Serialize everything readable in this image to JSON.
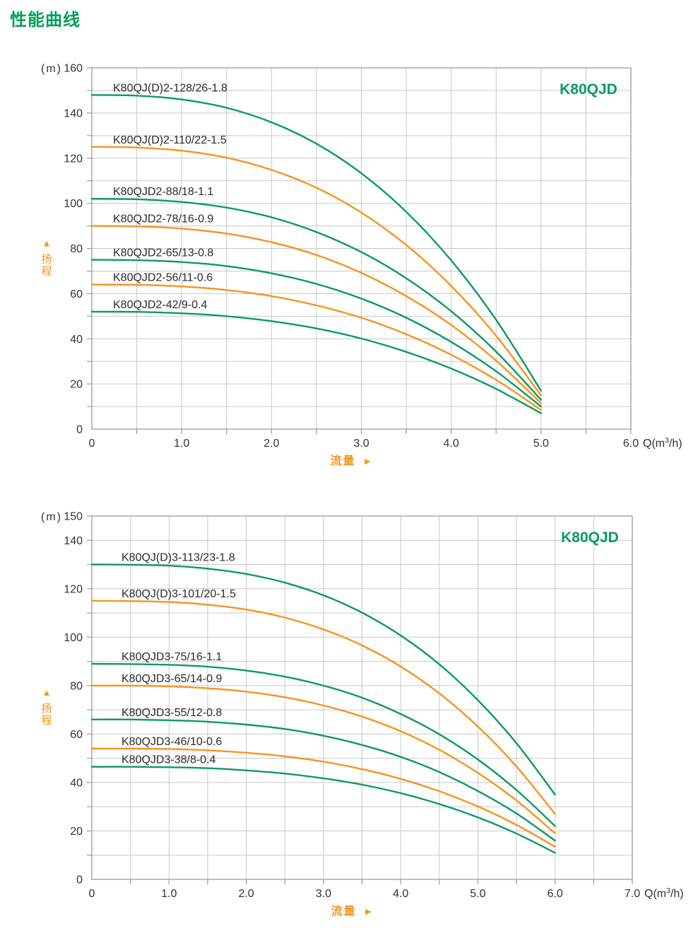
{
  "page": {
    "title": "性能曲线"
  },
  "colors": {
    "heading_green": "#00A05A",
    "curve_green": "#0B9A66",
    "curve_orange": "#F7941D",
    "axis_text": "#333333",
    "label_text": "#2B2B2B",
    "grid": "#C9C9C9",
    "frame": "#9B9B9B"
  },
  "chart_data": [
    {
      "type": "line",
      "title": "K80QJD",
      "y_unit": "(m)",
      "y_axis_label": "扬程",
      "y_axis_arrow": "▲",
      "x_axis_label": "流量",
      "x_axis_arrow": "►",
      "x_unit_prefix": "Q(m",
      "x_unit_sup": "3",
      "x_unit_suffix": "/h)",
      "xlim": [
        0,
        6
      ],
      "ylim": [
        0,
        160
      ],
      "grid": true,
      "grid_x_step": 0.5,
      "grid_y_step": 10,
      "x_tick_step": 1,
      "x_minor_step": 0.5,
      "y_minor_step": 10,
      "x_tick_labels": [
        "0",
        "1.0",
        "2.0",
        "3.0",
        "4.0",
        "5.0",
        "6.0"
      ],
      "y_tick_values": [
        0,
        20,
        40,
        60,
        80,
        100,
        120,
        140,
        160
      ],
      "legend_position": "inline-labels",
      "q": [
        0,
        0.5,
        1,
        1.5,
        2,
        2.5,
        3,
        3.5,
        4,
        4.5,
        5
      ],
      "series": [
        {
          "name": "K80QJ(D)2-128/26-1.8",
          "color": "green",
          "h": [
            148,
            147.7,
            146.0,
            142.3,
            135.9,
            126.4,
            113.3,
            96.2,
            74.7,
            48.4,
            17
          ]
        },
        {
          "name": "K80QJ(D)2-110/22-1.5",
          "color": "orange",
          "h": [
            125,
            124.7,
            123.3,
            120.2,
            114.8,
            106.9,
            95.9,
            81.5,
            63.4,
            41.3,
            15
          ]
        },
        {
          "name": "K80QJD2-88/18-1.1",
          "color": "green",
          "h": [
            102,
            101.8,
            100.6,
            98.1,
            93.8,
            87.3,
            78.4,
            66.8,
            52.2,
            34.3,
            13
          ]
        },
        {
          "name": "K80QJD2-78/16-0.9",
          "color": "orange",
          "h": [
            90,
            89.8,
            88.8,
            86.6,
            82.8,
            77.1,
            69.2,
            58.9,
            46.1,
            30.3,
            11.5
          ]
        },
        {
          "name": "K80QJD2-65/13-0.8",
          "color": "green",
          "h": [
            75,
            74.8,
            74.0,
            72.2,
            69.0,
            64.3,
            57.8,
            49.3,
            38.6,
            25.6,
            10
          ]
        },
        {
          "name": "K80QJD2-56/11-0.6",
          "color": "orange",
          "h": [
            64,
            63.9,
            63.2,
            61.6,
            58.9,
            54.8,
            49.3,
            42.0,
            32.9,
            21.8,
            8.5
          ]
        },
        {
          "name": "K80QJD2-42/9-0.4",
          "color": "green",
          "h": [
            52,
            51.9,
            51.3,
            50.0,
            47.8,
            44.6,
            40.1,
            34.2,
            26.8,
            17.8,
            7
          ]
        }
      ]
    },
    {
      "type": "line",
      "title": "K80QJD",
      "y_unit": "(m)",
      "y_axis_label": "扬程",
      "y_axis_arrow": "▲",
      "x_axis_label": "流量",
      "x_axis_arrow": "►",
      "x_unit_prefix": "Q(m",
      "x_unit_sup": "3",
      "x_unit_suffix": "/h)",
      "xlim": [
        0,
        7
      ],
      "ylim": [
        0,
        150
      ],
      "grid": true,
      "grid_x_step": 0.5,
      "grid_y_step": 10,
      "x_tick_step": 1,
      "x_minor_step": 0.5,
      "y_minor_step": 10,
      "x_tick_labels": [
        "0",
        "1.0",
        "2.0",
        "3.0",
        "4.0",
        "5.0",
        "6.0",
        "7.0"
      ],
      "y_tick_values": [
        0,
        20,
        40,
        60,
        80,
        100,
        120,
        140,
        150
      ],
      "legend_position": "inline-labels",
      "q": [
        0,
        0.5,
        1,
        1.5,
        2,
        2.5,
        3,
        3.5,
        4,
        4.5,
        5,
        5.5,
        6
      ],
      "series": [
        {
          "name": "K80QJ(D)3-113/23-1.8",
          "color": "green",
          "h": [
            130,
            129.9,
            129.5,
            128.3,
            126.1,
            122.5,
            117.3,
            110.1,
            100.7,
            88.8,
            74.0,
            56.2,
            35
          ]
        },
        {
          "name": "K80QJ(D)3-101/20-1.5",
          "color": "orange",
          "h": [
            115,
            114.9,
            114.5,
            113.4,
            111.4,
            108.1,
            103.2,
            96.6,
            87.9,
            76.8,
            63.1,
            46.6,
            27
          ]
        },
        {
          "name": "K80QJD3-75/16-1.1",
          "color": "green",
          "h": [
            89,
            88.9,
            88.6,
            87.8,
            86.2,
            83.7,
            80.0,
            75.0,
            68.3,
            59.9,
            49.5,
            36.9,
            22
          ]
        },
        {
          "name": "K80QJD3-65/14-0.9",
          "color": "orange",
          "h": [
            80,
            80.0,
            79.7,
            78.9,
            77.5,
            75.2,
            71.8,
            67.2,
            61.2,
            53.5,
            44.0,
            32.6,
            19
          ]
        },
        {
          "name": "K80QJD3-55/12-0.8",
          "color": "green",
          "h": [
            66,
            66.0,
            65.7,
            65.1,
            63.9,
            62.1,
            59.3,
            55.5,
            50.6,
            44.3,
            36.5,
            27.2,
            16
          ]
        },
        {
          "name": "K80QJD3-46/10-0.6",
          "color": "orange",
          "h": [
            54,
            54.0,
            53.8,
            53.3,
            52.3,
            50.8,
            48.6,
            45.5,
            41.5,
            36.4,
            30.1,
            22.5,
            13.5
          ]
        },
        {
          "name": "K80QJD3-38/8-0.4",
          "color": "green",
          "h": [
            46.5,
            46.5,
            46.3,
            45.9,
            45.0,
            43.7,
            41.7,
            39.1,
            35.6,
            31.1,
            25.6,
            18.9,
            11
          ]
        }
      ]
    }
  ]
}
